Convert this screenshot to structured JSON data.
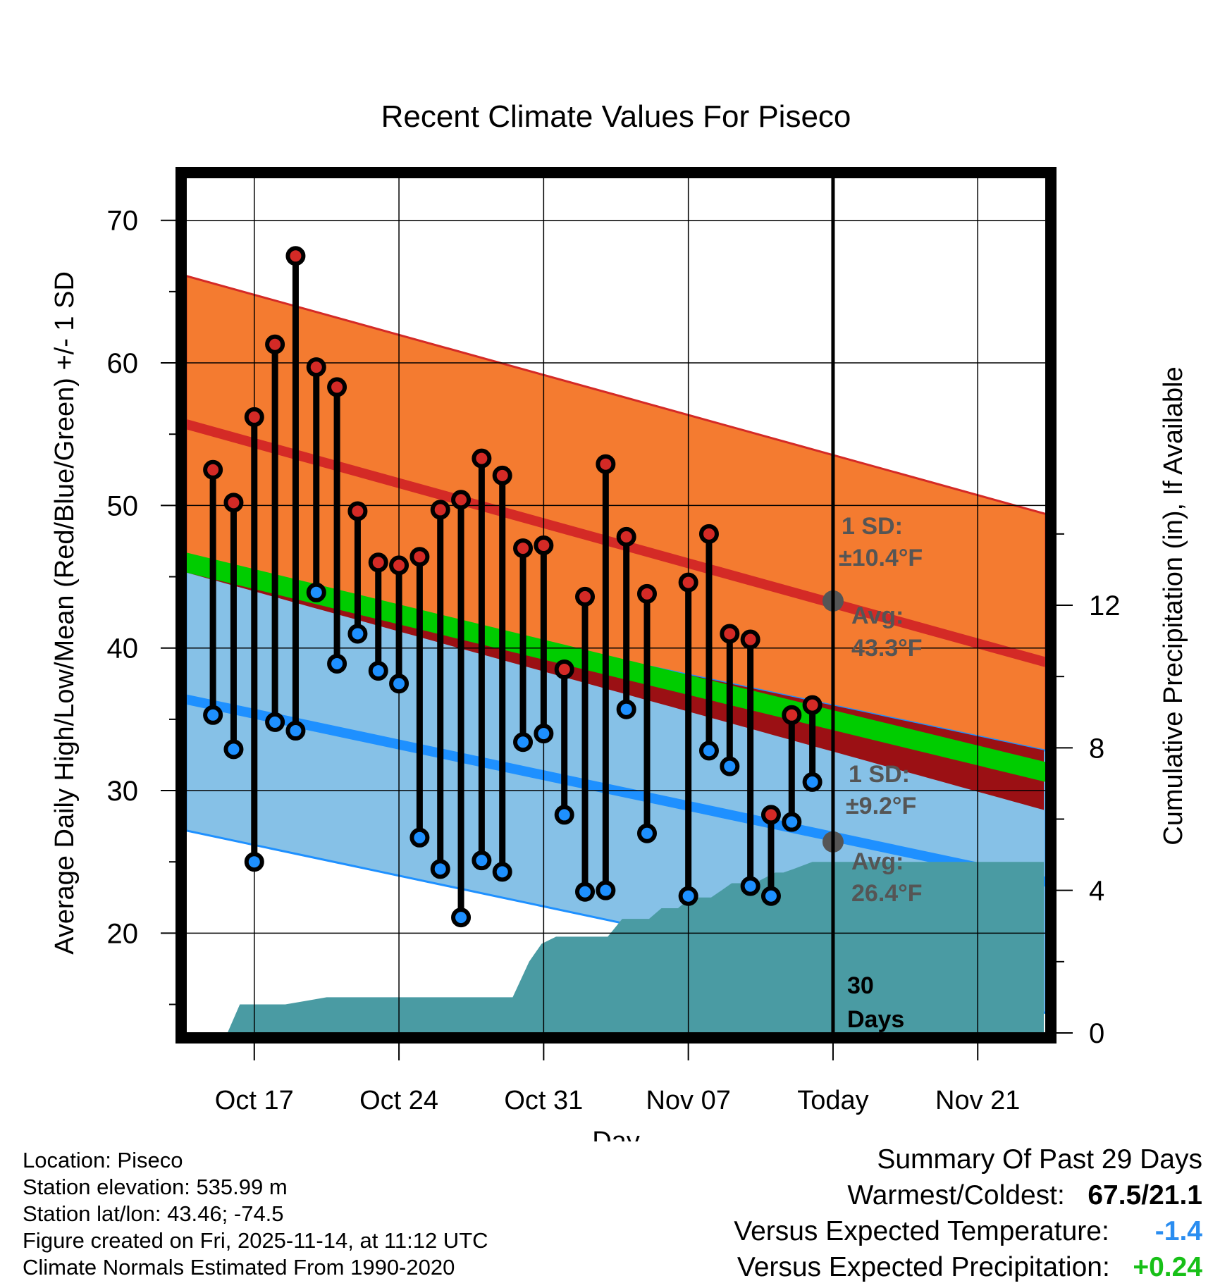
{
  "chart_data": {
    "type": "line",
    "title": "Recent Climate Values For Piseco",
    "xlabel": "Day",
    "ylabel": "Average Daily High/Low/Mean (Red/Blue/Green) +/- 1 SD",
    "y2label": "Cumulative Precipitation (in), If Available",
    "ylim": [
      13,
      73
    ],
    "y2lim": [
      0,
      24
    ],
    "yticks": [
      20,
      30,
      40,
      50,
      60,
      70
    ],
    "y2ticks": [
      0,
      4,
      8,
      12
    ],
    "xlim": [
      -3.3,
      38.3
    ],
    "xticks": [
      {
        "day": 0,
        "label": "Oct 17"
      },
      {
        "day": 7,
        "label": "Oct 24"
      },
      {
        "day": 14,
        "label": "Oct 31"
      },
      {
        "day": 21,
        "label": "Nov 07"
      },
      {
        "day": 28,
        "label": "Today"
      },
      {
        "day": 35,
        "label": "Nov 21"
      }
    ],
    "today_day": 28,
    "days": [
      -2,
      -1,
      0,
      1,
      2,
      3,
      4,
      5,
      6,
      7,
      8,
      9,
      10,
      11,
      12,
      13,
      14,
      15,
      16,
      17,
      18,
      19,
      20,
      21,
      22,
      23,
      24,
      25,
      26,
      27
    ],
    "highs": [
      52.5,
      50.2,
      56.2,
      61.3,
      67.5,
      59.7,
      58.3,
      49.6,
      46.0,
      45.8,
      46.4,
      49.7,
      50.4,
      53.3,
      52.1,
      47.0,
      47.2,
      38.5,
      43.6,
      52.9,
      47.8,
      43.8,
      null,
      44.6,
      48.0,
      41.0,
      40.6,
      28.3,
      35.3,
      36.0
    ],
    "lows": [
      35.3,
      32.9,
      25.0,
      34.8,
      34.2,
      43.9,
      38.9,
      41.0,
      38.4,
      37.5,
      26.7,
      24.5,
      21.1,
      25.1,
      24.3,
      33.4,
      34.0,
      28.3,
      22.9,
      23.0,
      35.7,
      27.0,
      null,
      22.6,
      32.8,
      31.7,
      23.3,
      22.6,
      27.8,
      30.6
    ],
    "normals": {
      "high_avg_start": 55.7,
      "high_avg_end": 39.0,
      "high_sd": 10.4,
      "low_avg_start": 36.4,
      "low_avg_end": 23.6,
      "low_sd": 9.2,
      "mean_start": 46.0,
      "mean_end": 31.3,
      "mean_halfwidth": 0.7
    },
    "precip_cumulative": {
      "days": [
        -1.3,
        -0.7,
        0.5,
        1.5,
        2.5,
        3.5,
        4.5,
        5.5,
        6.5,
        7.5,
        8.5,
        9.5,
        10.5,
        11.5,
        12.5,
        13.3,
        13.9,
        14.6,
        15.5,
        16.5,
        17.1,
        17.8,
        18.5,
        19.1,
        19.7,
        20.5,
        21.1,
        21.5,
        22.1,
        22.6,
        23.1,
        24.2,
        25.2,
        25.6,
        26.1,
        27.0,
        38.2
      ],
      "values": [
        0,
        0.8,
        0.8,
        0.8,
        0.9,
        1.0,
        1.0,
        1.0,
        1.0,
        1.0,
        1.0,
        1.0,
        1.0,
        1.0,
        1.0,
        2.0,
        2.5,
        2.7,
        2.7,
        2.7,
        2.7,
        3.2,
        3.2,
        3.2,
        3.5,
        3.5,
        3.8,
        3.8,
        3.8,
        4.0,
        4.2,
        4.2,
        4.5,
        4.5,
        4.6,
        4.8,
        4.8
      ]
    },
    "annotations": {
      "high_sd_label": "1 SD:",
      "high_sd_value": "±10.4°F",
      "high_avg_label": "Avg:",
      "high_avg_value": "43.3°F",
      "low_sd_label": "1 SD:",
      "low_sd_value": "±9.2°F",
      "low_avg_label": "Avg:",
      "low_avg_value": "26.4°F",
      "days_count": "30",
      "days_word": "Days"
    },
    "colors": {
      "high_band": "#f47b30",
      "high_line": "#d42a26",
      "low_band": "#86c1e7",
      "low_line": "#1e90ff",
      "mean_band": "#00cc00",
      "overlap": "#9b1014",
      "precip": "#4a9ba3",
      "high_marker": "#d42a26",
      "low_marker": "#1e90ff",
      "annotation_text": "#555555"
    }
  },
  "footer": {
    "location": "Location: Piseco",
    "elevation": "Station elevation: 535.99 m",
    "latlon": "Station lat/lon: 43.46; -74.5",
    "created": "Figure created on Fri, 2025-11-14, at 11:12 UTC",
    "normals": "Climate Normals Estimated From 1990-2020"
  },
  "summary": {
    "title": "Summary Of Past 29 Days",
    "warm_cold_label": "Warmest/Coldest:",
    "warm_cold_value": "67.5/21.1",
    "temp_label": "Versus Expected Temperature:",
    "temp_value": "-1.4",
    "temp_color": "#2a8df0",
    "precip_label": "Versus Expected Precipitation:",
    "precip_value": "+0.24",
    "precip_color": "#17c017"
  }
}
